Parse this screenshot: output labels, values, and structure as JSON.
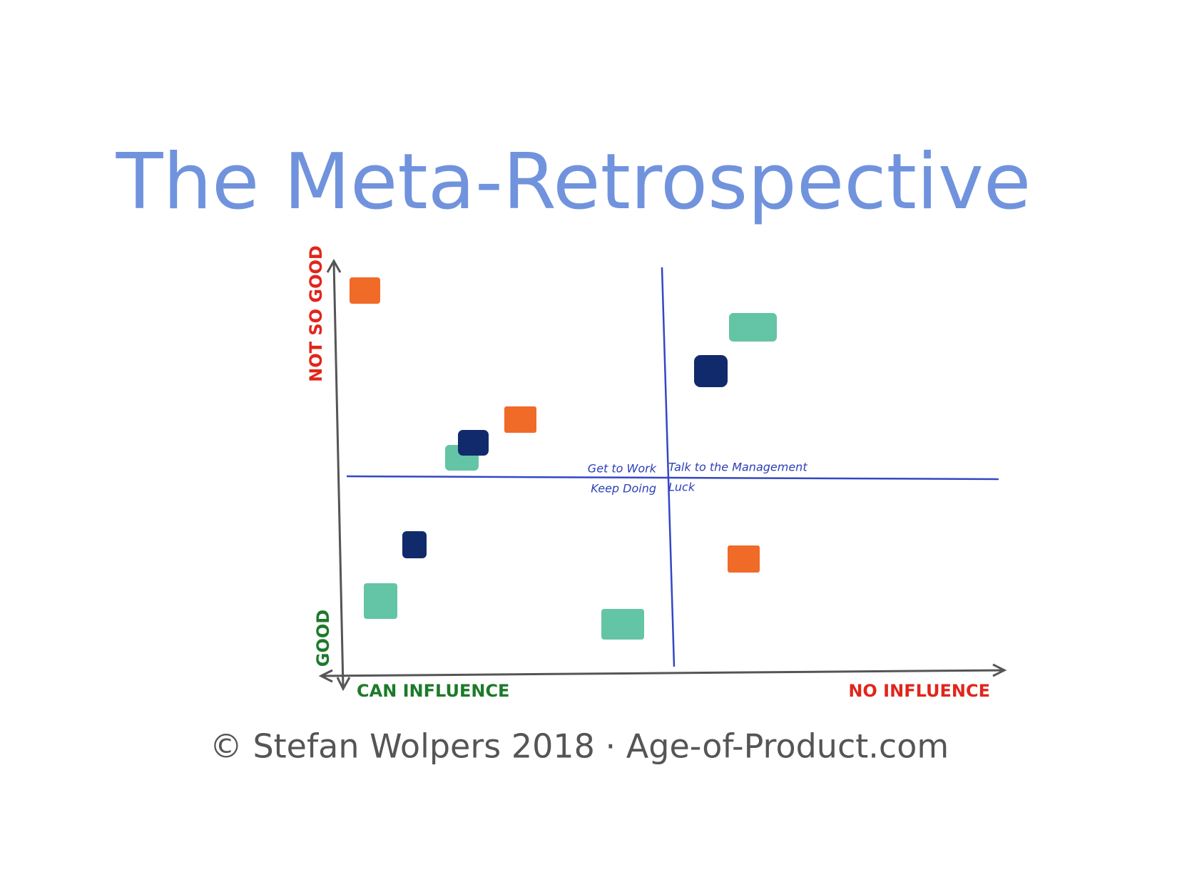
{
  "title": "The Meta-Retrospective",
  "y_axis": {
    "top": "NOT SO GOOD",
    "bottom": "GOOD"
  },
  "x_axis": {
    "left": "CAN INFLUENCE",
    "right": "NO INFLUENCE"
  },
  "quadrants": {
    "top_left": "Get to Work",
    "top_right": "Talk to the Management",
    "bottom_left": "Keep Doing",
    "bottom_right": "Luck"
  },
  "footer": "© Stefan Wolpers 2018 · Age-of-Product.com"
}
